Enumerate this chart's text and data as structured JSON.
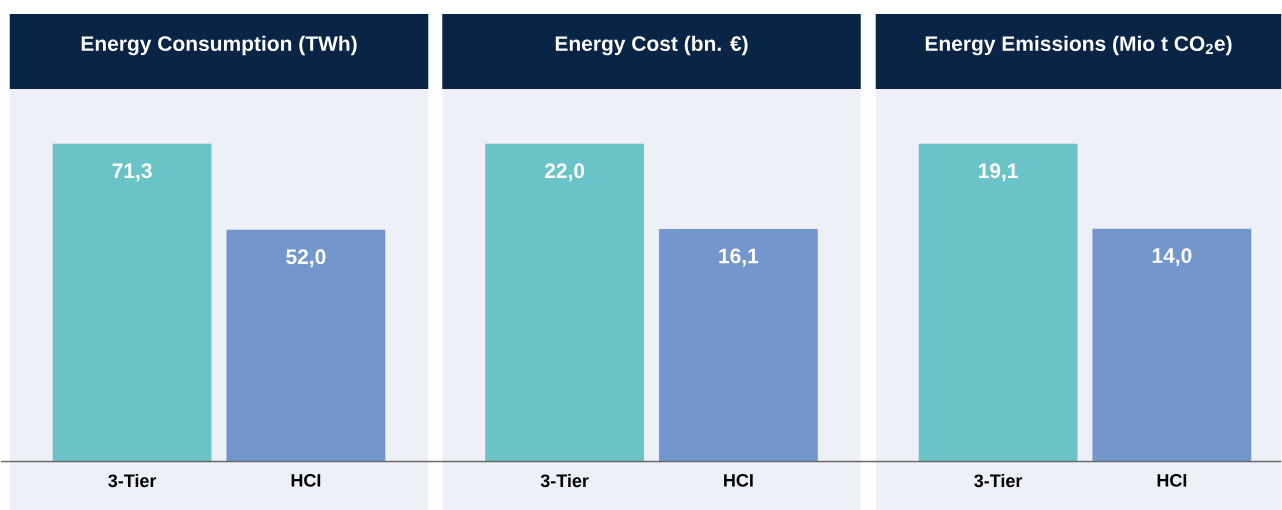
{
  "chart_data": [
    {
      "type": "bar",
      "title": "Energy Consumption (TWh)",
      "categories": [
        "3-Tier",
        "HCI"
      ],
      "values": [
        71.3,
        52.0
      ],
      "value_labels": [
        "71,3",
        "52,0"
      ],
      "colors": [
        "#6ac3c6",
        "#7396cd"
      ]
    },
    {
      "type": "bar",
      "title": "Energy Cost (bn. €)",
      "categories": [
        "3-Tier",
        "HCI"
      ],
      "values": [
        22.0,
        16.1
      ],
      "value_labels": [
        "22,0",
        "16,1"
      ],
      "colors": [
        "#6ac3c6",
        "#7396cd"
      ]
    },
    {
      "type": "bar",
      "title": "Energy Emissions (Mio t CO$_{2}$e)",
      "categories": [
        "3-Tier",
        "HCI"
      ],
      "values": [
        19.1,
        14.0
      ],
      "value_labels": [
        "19,1",
        "14,0"
      ],
      "colors": [
        "#6ac3c6",
        "#7396cd"
      ]
    }
  ]
}
